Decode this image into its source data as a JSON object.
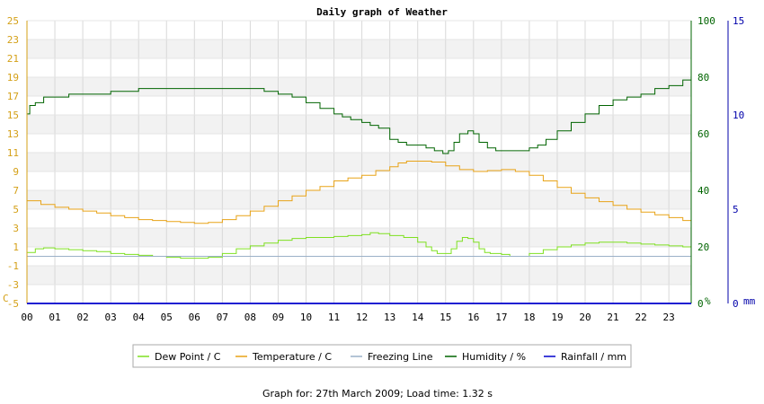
{
  "chart_data": {
    "type": "line",
    "title": "Daily graph of Weather",
    "footer": "Graph for: 27th March 2009; Load time: 1.32 s",
    "x_ticks": [
      "00",
      "01",
      "02",
      "03",
      "04",
      "05",
      "06",
      "07",
      "08",
      "09",
      "10",
      "11",
      "12",
      "13",
      "14",
      "15",
      "16",
      "17",
      "18",
      "19",
      "20",
      "21",
      "22",
      "23"
    ],
    "xlim": [
      0,
      23.8
    ],
    "left_axis": {
      "unit": "C",
      "ticks": [
        -5,
        -3,
        -1,
        1,
        3,
        5,
        7,
        9,
        11,
        13,
        15,
        17,
        19,
        21,
        23,
        25
      ],
      "ylim": [
        -5,
        25
      ]
    },
    "right_axis_1": {
      "unit": "%",
      "ticks": [
        0,
        20,
        40,
        60,
        80,
        100
      ],
      "ylim": [
        0,
        100
      ]
    },
    "right_axis_2": {
      "unit": "mm",
      "ticks": [
        0,
        5,
        10,
        15
      ],
      "ylim": [
        0,
        15
      ]
    },
    "grid": true,
    "legend_position": "bottom",
    "series": [
      {
        "name": "Dew Point / C",
        "axis": "left",
        "color": "#7ee020",
        "x": [
          0,
          0.3,
          0.6,
          1,
          1.5,
          2,
          2.5,
          3,
          3.5,
          4,
          4.5,
          5,
          5.5,
          6,
          6.5,
          7,
          7.5,
          8,
          8.5,
          9,
          9.5,
          10,
          10.5,
          11,
          11.5,
          12,
          12.3,
          12.6,
          13,
          13.5,
          14,
          14.3,
          14.5,
          14.7,
          15,
          15.2,
          15.4,
          15.6,
          15.8,
          16,
          16.2,
          16.4,
          16.6,
          16.8,
          17,
          17.3,
          17.6,
          18,
          18.5,
          19,
          19.5,
          20,
          20.5,
          21,
          21.5,
          22,
          22.5,
          23,
          23.5,
          23.8
        ],
        "values": [
          0.4,
          0.8,
          0.9,
          0.8,
          0.7,
          0.6,
          0.5,
          0.3,
          0.2,
          0.1,
          0.0,
          -0.1,
          -0.2,
          -0.2,
          -0.1,
          0.3,
          0.8,
          1.1,
          1.4,
          1.7,
          1.9,
          2.0,
          2.0,
          2.1,
          2.2,
          2.3,
          2.5,
          2.4,
          2.2,
          2.0,
          1.5,
          1.0,
          0.6,
          0.3,
          0.3,
          0.8,
          1.6,
          2.0,
          1.9,
          1.5,
          0.8,
          0.4,
          0.3,
          0.3,
          0.2,
          0.0,
          0.0,
          0.3,
          0.7,
          1.0,
          1.2,
          1.4,
          1.5,
          1.5,
          1.4,
          1.3,
          1.2,
          1.1,
          1.0,
          1.0
        ]
      },
      {
        "name": "Temperature / C",
        "axis": "left",
        "color": "#e8a317",
        "x": [
          0,
          0.5,
          1,
          1.5,
          2,
          2.5,
          3,
          3.5,
          4,
          4.5,
          5,
          5.5,
          6,
          6.5,
          7,
          7.5,
          8,
          8.5,
          9,
          9.5,
          10,
          10.5,
          11,
          11.5,
          12,
          12.5,
          13,
          13.3,
          13.6,
          14,
          14.5,
          15,
          15.5,
          16,
          16.5,
          17,
          17.5,
          18,
          18.5,
          19,
          19.5,
          20,
          20.5,
          21,
          21.5,
          22,
          22.5,
          23,
          23.5,
          23.8
        ],
        "values": [
          5.9,
          5.5,
          5.2,
          5.0,
          4.8,
          4.6,
          4.3,
          4.1,
          3.9,
          3.8,
          3.7,
          3.6,
          3.5,
          3.6,
          3.9,
          4.3,
          4.8,
          5.3,
          5.9,
          6.4,
          7.0,
          7.4,
          8.0,
          8.3,
          8.6,
          9.1,
          9.5,
          9.9,
          10.1,
          10.1,
          10.0,
          9.6,
          9.2,
          9.0,
          9.1,
          9.2,
          9.0,
          8.6,
          8.0,
          7.3,
          6.7,
          6.2,
          5.8,
          5.4,
          5.0,
          4.7,
          4.4,
          4.1,
          3.8,
          3.6
        ]
      },
      {
        "name": "Freezing Line",
        "axis": "left",
        "color": "#9bb0c8",
        "x": [
          0,
          23.8
        ],
        "values": [
          0,
          0
        ]
      },
      {
        "name": "Humidity / %",
        "axis": "right_1",
        "color": "#006400",
        "x": [
          0,
          0.1,
          0.3,
          0.6,
          1,
          1.5,
          2,
          2.5,
          3,
          3.5,
          4,
          4.5,
          5,
          5.5,
          6,
          6.5,
          7,
          7.5,
          8,
          8.5,
          9,
          9.5,
          10,
          10.5,
          11,
          11.3,
          11.6,
          12,
          12.3,
          12.6,
          13,
          13.3,
          13.6,
          14,
          14.3,
          14.6,
          14.9,
          15.1,
          15.3,
          15.5,
          15.8,
          16,
          16.2,
          16.5,
          16.8,
          17,
          17.3,
          17.6,
          18,
          18.3,
          18.6,
          19,
          19.5,
          20,
          20.5,
          21,
          21.5,
          22,
          22.5,
          23,
          23.5,
          23.8
        ],
        "values": [
          67,
          70,
          71,
          73,
          73,
          74,
          74,
          74,
          75,
          75,
          76,
          76,
          76,
          76,
          76,
          76,
          76,
          76,
          76,
          75,
          74,
          73,
          71,
          69,
          67,
          66,
          65,
          64,
          63,
          62,
          58,
          57,
          56,
          56,
          55,
          54,
          53,
          54,
          57,
          60,
          61,
          60,
          57,
          55,
          54,
          54,
          54,
          54,
          55,
          56,
          58,
          61,
          64,
          67,
          70,
          72,
          73,
          74,
          76,
          77,
          79,
          80
        ]
      },
      {
        "name": "Rainfall / mm",
        "axis": "right_2",
        "color": "#0000cc",
        "x": [
          0,
          23.8
        ],
        "values": [
          0,
          0
        ]
      }
    ]
  }
}
